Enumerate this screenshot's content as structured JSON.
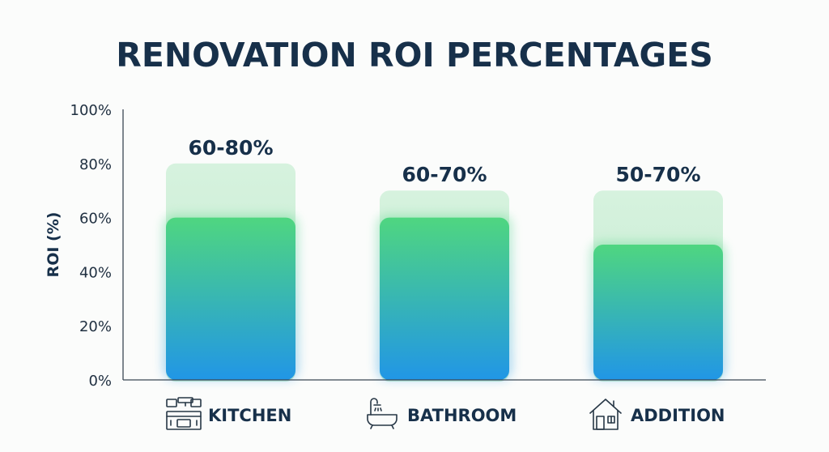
{
  "chart_data": {
    "type": "bar",
    "title": "RENOVATION ROI PERCENTAGES",
    "ylabel": "ROI (%)",
    "xlabel": "",
    "ylim": [
      0,
      100
    ],
    "yticks": [
      "0%",
      "20%",
      "40%",
      "60%",
      "80%",
      "100%"
    ],
    "ytick_values": [
      0,
      20,
      40,
      60,
      80,
      100
    ],
    "grid": false,
    "categories": [
      "KITCHEN",
      "BATHROOM",
      "ADDITION"
    ],
    "icons": [
      "kitchen-icon",
      "bathroom-icon",
      "house-icon"
    ],
    "series": [
      {
        "values": [
          60,
          60,
          50
        ]
      },
      {
        "values": [
          80,
          70,
          70
        ]
      }
    ],
    "range_labels": [
      "60-80%",
      "60-70%",
      "50-70%"
    ],
    "colors": {
      "bar_top": "#4fd680",
      "bar_bottom": "#2196e6",
      "range_fill": "#cdeed7",
      "text": "#17304a",
      "axis": "#3a4754",
      "background": "#fbfcfb"
    }
  }
}
